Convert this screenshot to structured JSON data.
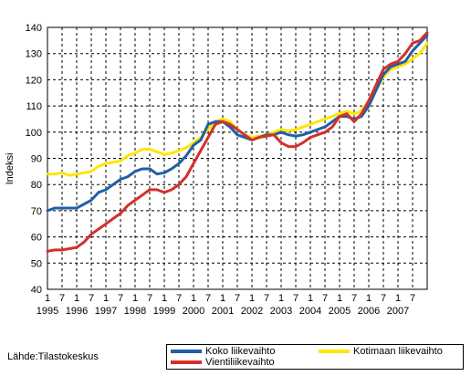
{
  "source_text": "Lähde:Tilastokeskus",
  "chart_data": {
    "type": "line",
    "ylabel": "Indeksi",
    "ylim": [
      40,
      140
    ],
    "yticks": [
      40,
      50,
      60,
      70,
      80,
      90,
      100,
      110,
      120,
      130,
      140
    ],
    "x_month_ticks": [
      "1",
      "7",
      "1",
      "7",
      "1",
      "7",
      "1",
      "7",
      "1",
      "7",
      "1",
      "7",
      "1",
      "7",
      "1",
      "7",
      "1",
      "7",
      "1",
      "7",
      "1",
      "7",
      "1",
      "7",
      "1",
      "7"
    ],
    "x_year_labels": [
      "1995",
      "1996",
      "1997",
      "1998",
      "1999",
      "2000",
      "2001",
      "2002",
      "2003",
      "2004",
      "2005",
      "2006",
      "2007"
    ],
    "xlim": [
      1995.0,
      2008.0
    ],
    "grid": true,
    "legend_position": "bottom-right",
    "series": [
      {
        "name": "Koko liikevaihto",
        "color": "#1f5fa8",
        "points": [
          [
            1995.0,
            70
          ],
          [
            1995.25,
            71
          ],
          [
            1995.75,
            71
          ],
          [
            1996.0,
            71
          ],
          [
            1996.25,
            72.5
          ],
          [
            1996.5,
            74
          ],
          [
            1996.75,
            77
          ],
          [
            1997.0,
            78
          ],
          [
            1997.25,
            80
          ],
          [
            1997.5,
            82
          ],
          [
            1997.75,
            83
          ],
          [
            1998.0,
            85
          ],
          [
            1998.25,
            86
          ],
          [
            1998.5,
            86
          ],
          [
            1998.75,
            84
          ],
          [
            1999.0,
            84.5
          ],
          [
            1999.25,
            86
          ],
          [
            1999.5,
            88
          ],
          [
            1999.75,
            91
          ],
          [
            2000.0,
            95
          ],
          [
            2000.25,
            97
          ],
          [
            2000.5,
            103
          ],
          [
            2000.75,
            104
          ],
          [
            2001.0,
            104
          ],
          [
            2001.25,
            102
          ],
          [
            2001.5,
            99
          ],
          [
            2001.75,
            98
          ],
          [
            2002.0,
            97
          ],
          [
            2002.25,
            98
          ],
          [
            2002.5,
            99
          ],
          [
            2002.75,
            99
          ],
          [
            2003.0,
            100
          ],
          [
            2003.25,
            99
          ],
          [
            2003.5,
            98.5
          ],
          [
            2003.75,
            99
          ],
          [
            2004.0,
            100
          ],
          [
            2004.25,
            101
          ],
          [
            2004.5,
            102
          ],
          [
            2004.75,
            104
          ],
          [
            2005.0,
            106
          ],
          [
            2005.25,
            106
          ],
          [
            2005.5,
            105
          ],
          [
            2005.75,
            106
          ],
          [
            2006.0,
            110
          ],
          [
            2006.25,
            116
          ],
          [
            2006.5,
            122
          ],
          [
            2006.75,
            125
          ],
          [
            2007.0,
            126
          ],
          [
            2007.25,
            127
          ],
          [
            2007.5,
            131
          ],
          [
            2007.75,
            134
          ],
          [
            2008.0,
            137
          ]
        ]
      },
      {
        "name": "Kotimaan liikevaihto",
        "color": "#ffe600",
        "points": [
          [
            1995.0,
            84
          ],
          [
            1995.25,
            84
          ],
          [
            1995.5,
            84.5
          ],
          [
            1995.75,
            83.5
          ],
          [
            1996.0,
            84
          ],
          [
            1996.25,
            84.5
          ],
          [
            1996.5,
            85
          ],
          [
            1996.75,
            87
          ],
          [
            1997.0,
            88
          ],
          [
            1997.25,
            88.5
          ],
          [
            1997.5,
            89
          ],
          [
            1997.75,
            91
          ],
          [
            1998.0,
            92
          ],
          [
            1998.25,
            93.5
          ],
          [
            1998.5,
            93.5
          ],
          [
            1998.75,
            92.5
          ],
          [
            1999.0,
            91.5
          ],
          [
            1999.25,
            92
          ],
          [
            1999.5,
            93
          ],
          [
            1999.75,
            94
          ],
          [
            2000.0,
            96
          ],
          [
            2000.25,
            98
          ],
          [
            2000.5,
            101
          ],
          [
            2000.75,
            104
          ],
          [
            2001.0,
            105
          ],
          [
            2001.25,
            104
          ],
          [
            2001.5,
            101
          ],
          [
            2001.75,
            99
          ],
          [
            2002.0,
            98
          ],
          [
            2002.25,
            98.5
          ],
          [
            2002.5,
            99
          ],
          [
            2002.75,
            100
          ],
          [
            2003.0,
            101
          ],
          [
            2003.25,
            100.5
          ],
          [
            2003.5,
            101
          ],
          [
            2003.75,
            102
          ],
          [
            2004.0,
            103
          ],
          [
            2004.25,
            104
          ],
          [
            2004.5,
            105
          ],
          [
            2004.75,
            106
          ],
          [
            2005.0,
            107
          ],
          [
            2005.25,
            108
          ],
          [
            2005.5,
            107
          ],
          [
            2005.75,
            108
          ],
          [
            2006.0,
            112
          ],
          [
            2006.25,
            116
          ],
          [
            2006.5,
            121
          ],
          [
            2006.75,
            124
          ],
          [
            2007.0,
            125
          ],
          [
            2007.25,
            126
          ],
          [
            2007.5,
            128
          ],
          [
            2007.75,
            130
          ],
          [
            2008.0,
            134
          ]
        ]
      },
      {
        "name": "Vientiliikevaihto",
        "color": "#d4302a",
        "points": [
          [
            1995.0,
            54.5
          ],
          [
            1995.25,
            55
          ],
          [
            1995.5,
            55
          ],
          [
            1995.75,
            55.5
          ],
          [
            1996.0,
            56
          ],
          [
            1996.25,
            58
          ],
          [
            1996.5,
            61
          ],
          [
            1996.75,
            63
          ],
          [
            1997.0,
            65
          ],
          [
            1997.25,
            67
          ],
          [
            1997.5,
            69
          ],
          [
            1997.75,
            72
          ],
          [
            1998.0,
            74
          ],
          [
            1998.25,
            76
          ],
          [
            1998.5,
            78
          ],
          [
            1998.75,
            78
          ],
          [
            1999.0,
            77
          ],
          [
            1999.25,
            78
          ],
          [
            1999.5,
            80
          ],
          [
            1999.75,
            83
          ],
          [
            2000.0,
            88
          ],
          [
            2000.25,
            93
          ],
          [
            2000.5,
            98
          ],
          [
            2000.75,
            103
          ],
          [
            2001.0,
            104
          ],
          [
            2001.25,
            103
          ],
          [
            2001.5,
            101
          ],
          [
            2001.75,
            99
          ],
          [
            2002.0,
            97
          ],
          [
            2002.25,
            98
          ],
          [
            2002.5,
            98.5
          ],
          [
            2002.75,
            99
          ],
          [
            2003.0,
            96
          ],
          [
            2003.25,
            94.5
          ],
          [
            2003.5,
            94.5
          ],
          [
            2003.75,
            96
          ],
          [
            2004.0,
            98
          ],
          [
            2004.25,
            99
          ],
          [
            2004.5,
            100
          ],
          [
            2004.75,
            102
          ],
          [
            2005.0,
            106
          ],
          [
            2005.25,
            107
          ],
          [
            2005.5,
            104
          ],
          [
            2005.75,
            107
          ],
          [
            2006.0,
            112
          ],
          [
            2006.25,
            118
          ],
          [
            2006.5,
            124
          ],
          [
            2006.75,
            126
          ],
          [
            2007.0,
            127
          ],
          [
            2007.25,
            130
          ],
          [
            2007.5,
            134
          ],
          [
            2007.75,
            135
          ],
          [
            2008.0,
            138
          ]
        ]
      }
    ]
  }
}
